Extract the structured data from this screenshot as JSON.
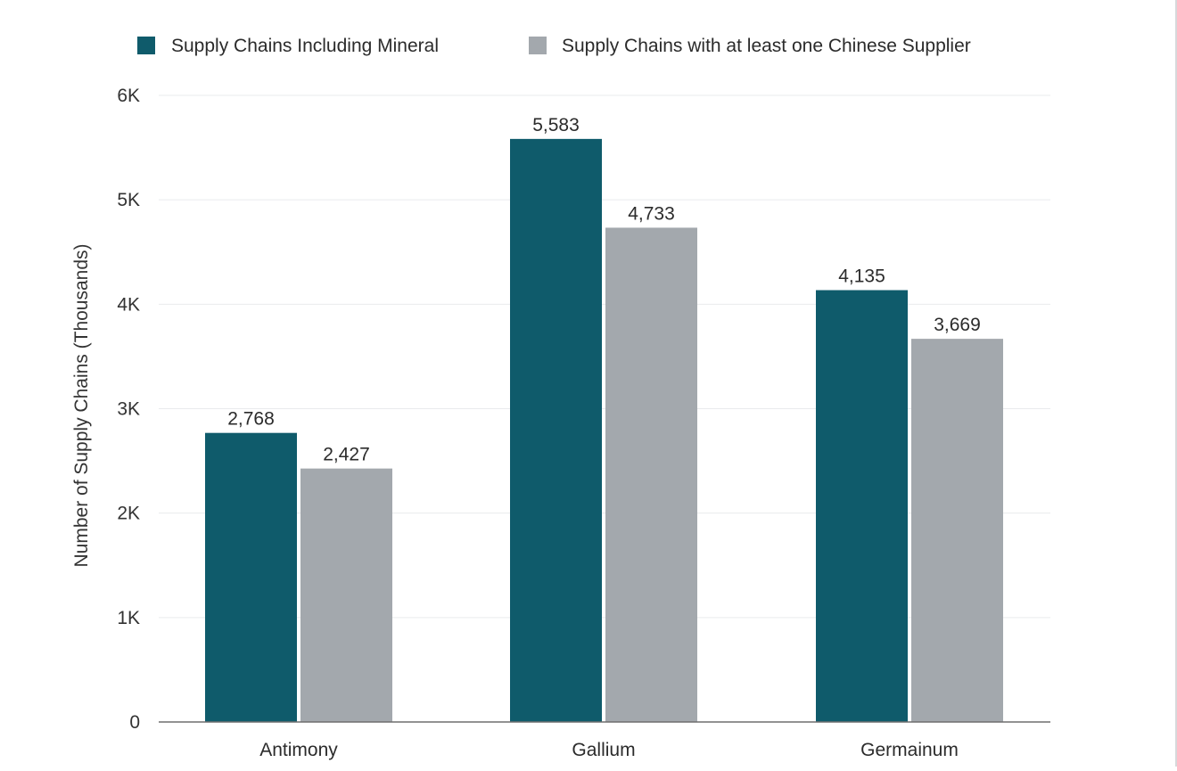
{
  "chart_data": {
    "type": "bar",
    "categories": [
      "Antimony",
      "Gallium",
      "Germainum"
    ],
    "series": [
      {
        "name": "Supply Chains Including Mineral",
        "values": [
          2768,
          5583,
          4135
        ],
        "labels": [
          "2,768",
          "5,583",
          "4,135"
        ],
        "color": "#0f5b6b"
      },
      {
        "name": "Supply Chains with at least one Chinese Supplier",
        "values": [
          2427,
          4733,
          3669
        ],
        "labels": [
          "2,427",
          "4,733",
          "3,669"
        ],
        "color": "#a3a8ad"
      }
    ],
    "ylabel": "Number of Supply Chains (Thousands)",
    "xlabel": "",
    "ylim": [
      0,
      6000
    ],
    "yticks": [
      {
        "value": 0,
        "label": "0"
      },
      {
        "value": 1000,
        "label": "1K"
      },
      {
        "value": 2000,
        "label": "2K"
      },
      {
        "value": 3000,
        "label": "3K"
      },
      {
        "value": 4000,
        "label": "4K"
      },
      {
        "value": 5000,
        "label": "5K"
      },
      {
        "value": 6000,
        "label": "6K"
      }
    ],
    "grid": true,
    "legend_position": "top"
  }
}
